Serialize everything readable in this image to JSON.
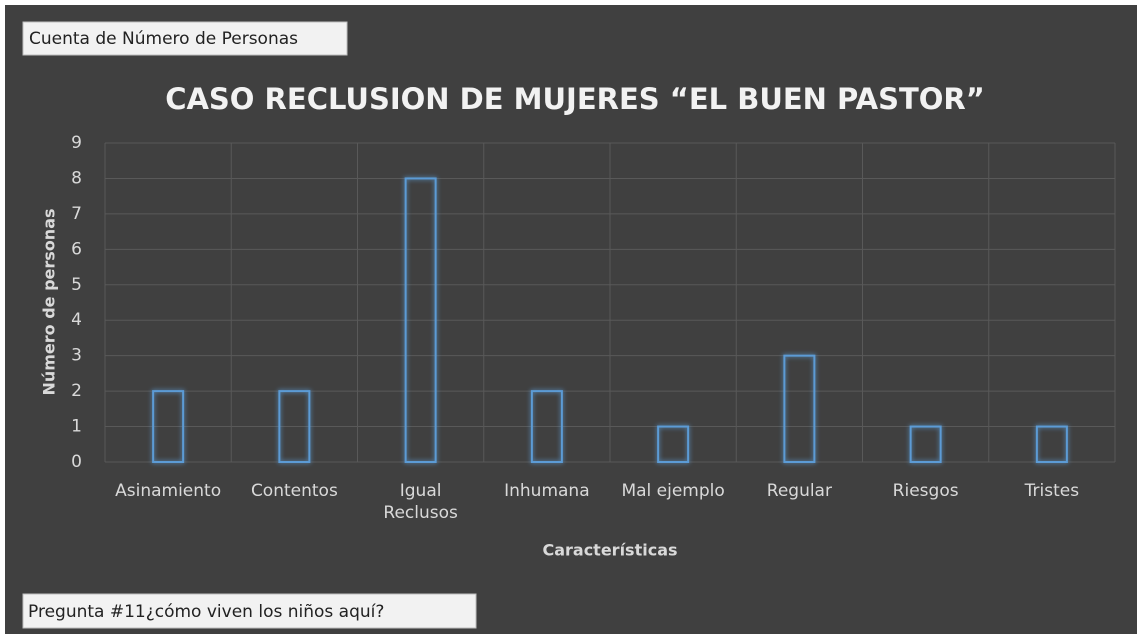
{
  "chart_data": {
    "type": "bar",
    "filter_button": "Cuenta de Número de Personas",
    "title": "CASO RECLUSION DE MUJERES “EL BUEN PASTOR”",
    "xlabel": "Características",
    "ylabel": "Número de personas",
    "categories": [
      "Asinamiento",
      "Contentos",
      "Igual Reclusos",
      "Inhumana",
      "Mal ejemplo",
      "Regular",
      "Riesgos",
      "Tristes"
    ],
    "values": [
      2,
      2,
      8,
      2,
      1,
      3,
      1,
      1
    ],
    "color": "#5b9bd5",
    "ylim": [
      0,
      9
    ],
    "yticks": [
      0,
      1,
      2,
      3,
      4,
      5,
      6,
      7,
      8,
      9
    ],
    "grid": true,
    "field_button": "Pregunta #11¿cómo viven los niños aquí?"
  }
}
